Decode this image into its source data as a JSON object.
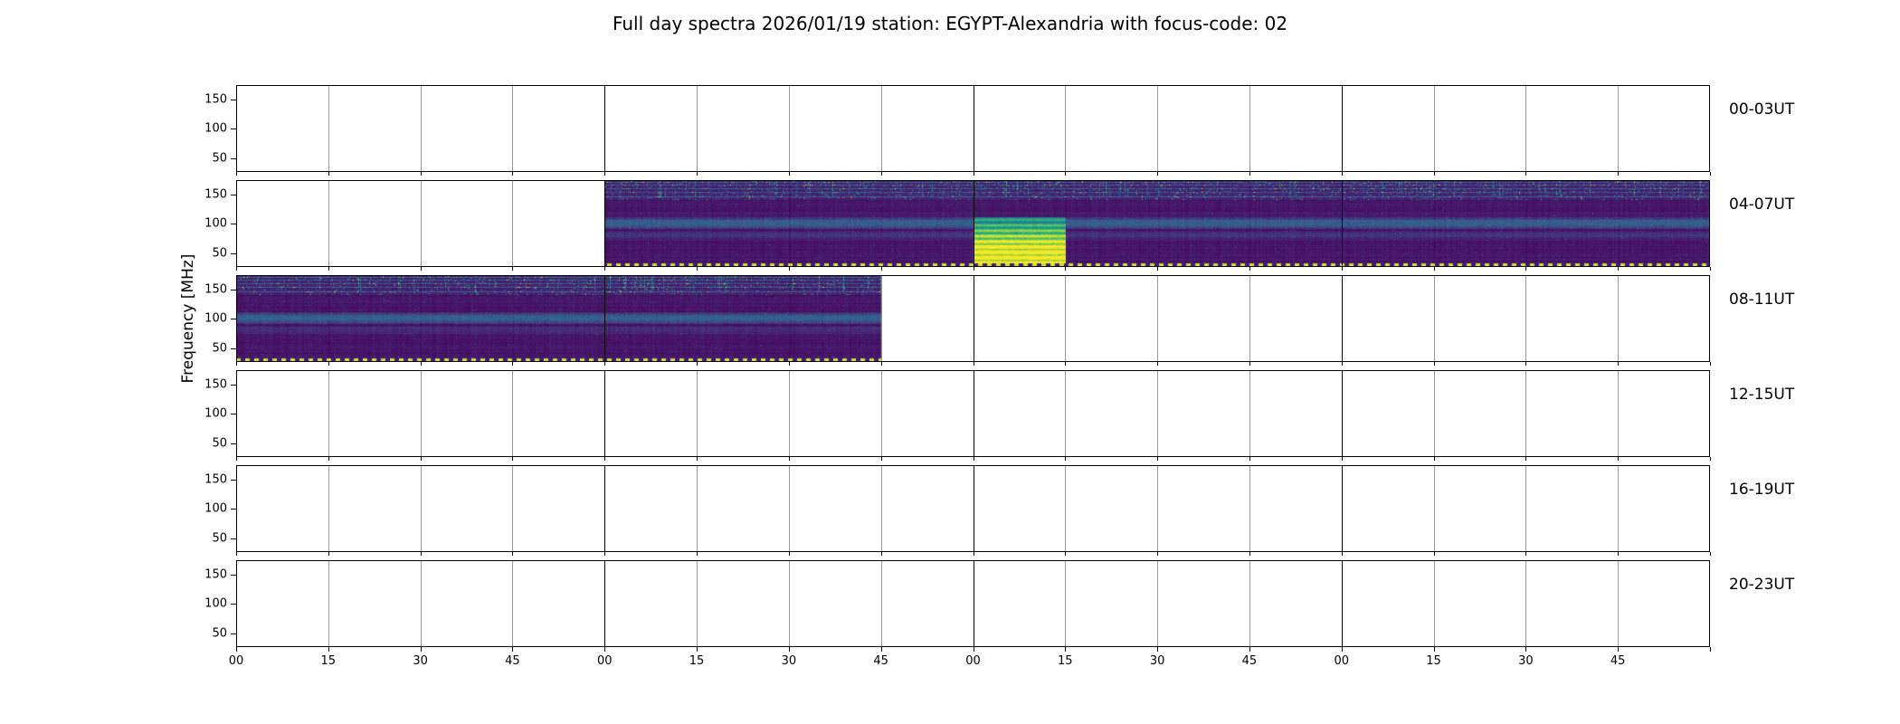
{
  "title": "Full day spectra 2026/01/19 station: EGYPT-Alexandria with focus-code: 02",
  "ylabel": "Frequency [MHz]",
  "chart_data": {
    "type": "heatmap",
    "colormap": "viridis",
    "hours_per_panel": 4,
    "x_tick_labels_per_hour": [
      "00",
      "15",
      "30",
      "45"
    ],
    "y_ticks_mhz": [
      150,
      100,
      50
    ],
    "rows": [
      {
        "label": "00-03UT",
        "segments": []
      },
      {
        "label": "04-07UT",
        "segments": [
          {
            "x0": 0.25,
            "x1": 1.0
          }
        ],
        "burst": {
          "x0": 0.5,
          "x1": 0.5625,
          "y0": 0.42,
          "y1": 0.97
        }
      },
      {
        "label": "08-11UT",
        "segments": [
          {
            "x0": 0.0,
            "x1": 0.4375
          }
        ]
      },
      {
        "label": "12-15UT",
        "segments": []
      },
      {
        "label": "16-19UT",
        "segments": []
      },
      {
        "label": "20-23UT",
        "segments": []
      }
    ],
    "colors": {
      "spectrum_background": "#440154",
      "spectrum_band": "#21918c",
      "burst_peak": "#fde725",
      "dotted_baseline": "#d8e219",
      "grid": "#999999",
      "spine": "#000000"
    }
  }
}
